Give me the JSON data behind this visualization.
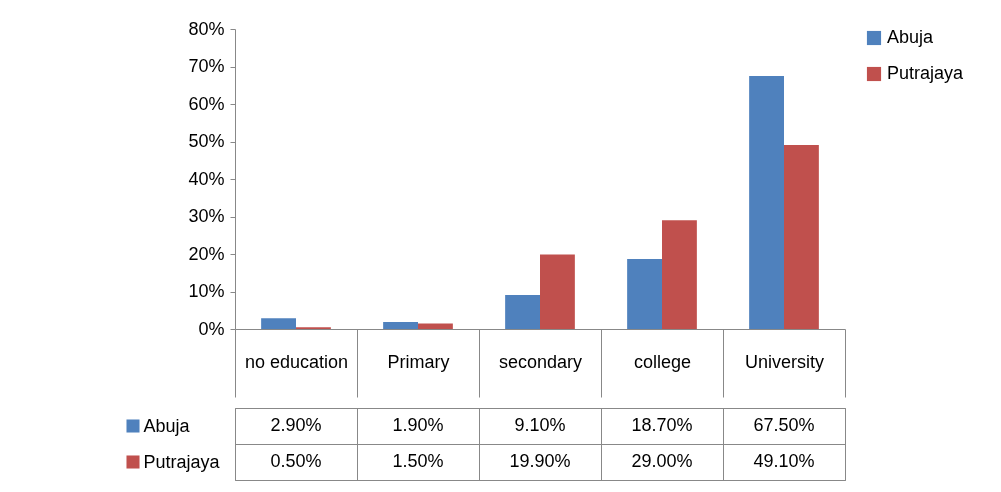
{
  "chart_data": {
    "type": "bar",
    "categories": [
      "no education",
      "Primary",
      "secondary",
      "college",
      "University"
    ],
    "series": [
      {
        "name": "Abuja",
        "color": "#4f81bd",
        "values": [
          2.9,
          1.9,
          9.1,
          18.7,
          67.5
        ],
        "value_labels": [
          "2.90%",
          "1.90%",
          "9.10%",
          "18.70%",
          "67.50%"
        ]
      },
      {
        "name": "Putrajaya",
        "color": "#c0504d",
        "values": [
          0.5,
          1.5,
          19.9,
          29.0,
          49.1
        ],
        "value_labels": [
          "0.50%",
          "1.50%",
          "19.90%",
          "29.00%",
          "49.10%"
        ]
      }
    ],
    "ylim": [
      0,
      80
    ],
    "yticks": [
      {
        "value": 0,
        "label": "0%"
      },
      {
        "value": 10,
        "label": "10%"
      },
      {
        "value": 20,
        "label": "20%"
      },
      {
        "value": 30,
        "label": "30%"
      },
      {
        "value": 40,
        "label": "40%"
      },
      {
        "value": 50,
        "label": "50%"
      },
      {
        "value": 60,
        "label": "60%"
      },
      {
        "value": 70,
        "label": "70%"
      },
      {
        "value": 80,
        "label": "80%"
      }
    ],
    "legend": "right"
  }
}
